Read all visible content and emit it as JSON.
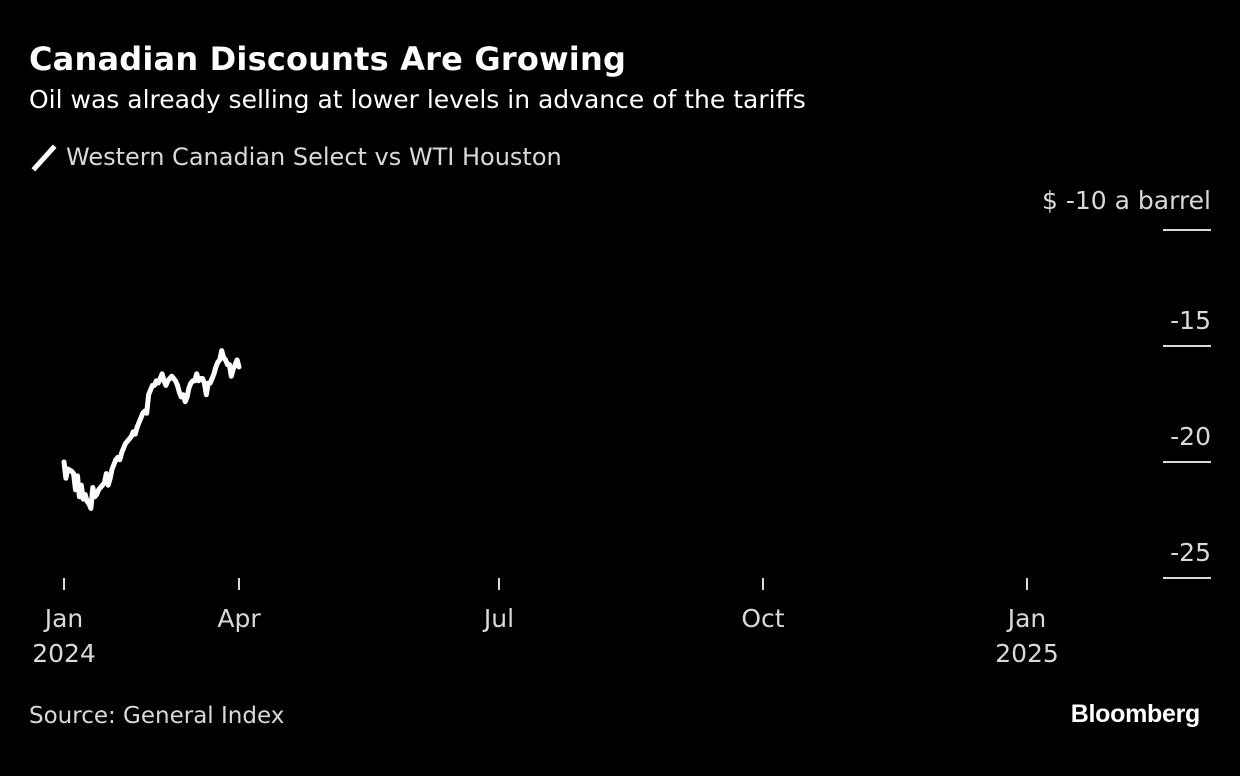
{
  "title": "Canadian Discounts Are Growing",
  "subtitle": "Oil was already selling at lower levels in advance of the tariffs",
  "source": "Source: General Index",
  "logo": "Bloomberg",
  "colors": {
    "background": "#000000",
    "line": "#ffffff",
    "text": "#d9d9d9",
    "gridline": "#d9d9d9"
  },
  "chart_data": {
    "type": "line",
    "title": "Canadian Discounts Are Growing",
    "subtitle": "Oil was already selling at lower levels in advance of the tariffs",
    "xlabel": "",
    "ylabel": "$ a barrel",
    "unit_label": "$ -10 a barrel",
    "ylim": [
      -25,
      -10
    ],
    "yticks": [
      -10,
      -15,
      -20,
      -25
    ],
    "ytick_labels": [
      "$ -10 a barrel",
      "-15",
      "-20",
      "-25"
    ],
    "y_axis_side": "right",
    "xticks": [
      {
        "day": 0,
        "label": "Jan",
        "sublabel": "2024"
      },
      {
        "day": 91,
        "label": "Apr",
        "sublabel": ""
      },
      {
        "day": 182,
        "label": "Jul",
        "sublabel": ""
      },
      {
        "day": 274,
        "label": "Oct",
        "sublabel": ""
      },
      {
        "day": 366,
        "label": "Jan",
        "sublabel": "2025"
      }
    ],
    "x_units": "days since Jan 1 2024",
    "legend": {
      "position": "top-left",
      "entries": [
        "Western Canadian Select vs WTI Houston"
      ]
    },
    "grid": false,
    "series": [
      {
        "name": "Western Canadian Select vs WTI Houston",
        "points": [
          [
            0,
            -20.0
          ],
          [
            1,
            -20.7
          ],
          [
            2,
            -20.3
          ],
          [
            4,
            -20.4
          ],
          [
            5,
            -20.5
          ],
          [
            6,
            -21.2
          ],
          [
            7,
            -20.6
          ],
          [
            8,
            -21.5
          ],
          [
            9,
            -21.0
          ],
          [
            10,
            -21.6
          ],
          [
            11,
            -21.4
          ],
          [
            12,
            -21.7
          ],
          [
            13,
            -21.8
          ],
          [
            14,
            -22.0
          ],
          [
            15,
            -21.1
          ],
          [
            16,
            -21.5
          ],
          [
            17,
            -21.4
          ],
          [
            18,
            -21.2
          ],
          [
            19,
            -21.1
          ],
          [
            20,
            -21.0
          ],
          [
            21,
            -20.9
          ],
          [
            22,
            -20.5
          ],
          [
            23,
            -21.0
          ],
          [
            24,
            -20.7
          ],
          [
            25,
            -20.3
          ],
          [
            26,
            -20.1
          ],
          [
            27,
            -19.9
          ],
          [
            28,
            -19.8
          ],
          [
            29,
            -19.9
          ],
          [
            30,
            -19.6
          ],
          [
            31,
            -19.4
          ],
          [
            32,
            -19.2
          ],
          [
            33,
            -19.1
          ],
          [
            34,
            -19.0
          ],
          [
            35,
            -18.9
          ],
          [
            36,
            -18.7
          ],
          [
            37,
            -18.8
          ],
          [
            38,
            -18.5
          ],
          [
            39,
            -18.3
          ],
          [
            40,
            -18.1
          ],
          [
            41,
            -17.9
          ],
          [
            42,
            -17.8
          ],
          [
            43,
            -17.9
          ],
          [
            44,
            -17.1
          ],
          [
            45,
            -16.9
          ],
          [
            46,
            -16.7
          ],
          [
            47,
            -16.7
          ],
          [
            48,
            -16.5
          ],
          [
            49,
            -16.6
          ],
          [
            50,
            -16.4
          ],
          [
            51,
            -16.2
          ],
          [
            52,
            -16.5
          ],
          [
            53,
            -16.7
          ],
          [
            54,
            -16.5
          ],
          [
            55,
            -16.4
          ],
          [
            56,
            -16.3
          ],
          [
            57,
            -16.4
          ],
          [
            58,
            -16.5
          ],
          [
            59,
            -16.7
          ],
          [
            60,
            -17.0
          ],
          [
            61,
            -17.2
          ],
          [
            62,
            -17.1
          ],
          [
            63,
            -17.4
          ],
          [
            64,
            -17.2
          ],
          [
            65,
            -16.8
          ],
          [
            66,
            -16.6
          ],
          [
            67,
            -16.5
          ],
          [
            68,
            -16.5
          ],
          [
            69,
            -16.2
          ],
          [
            70,
            -16.5
          ],
          [
            71,
            -16.4
          ],
          [
            72,
            -16.4
          ],
          [
            73,
            -16.6
          ],
          [
            74,
            -17.1
          ],
          [
            75,
            -16.6
          ],
          [
            76,
            -16.6
          ],
          [
            77,
            -16.4
          ],
          [
            78,
            -16.2
          ],
          [
            79,
            -15.9
          ],
          [
            80,
            -15.7
          ],
          [
            81,
            -15.6
          ],
          [
            82,
            -15.2
          ],
          [
            83,
            -15.5
          ],
          [
            84,
            -15.6
          ],
          [
            85,
            -15.8
          ],
          [
            86,
            -15.8
          ],
          [
            87,
            -16.3
          ],
          [
            88,
            -16.0
          ],
          [
            89,
            -15.8
          ],
          [
            90,
            -15.6
          ],
          [
            91,
            -15.9
          ]
        ]
      }
    ]
  }
}
